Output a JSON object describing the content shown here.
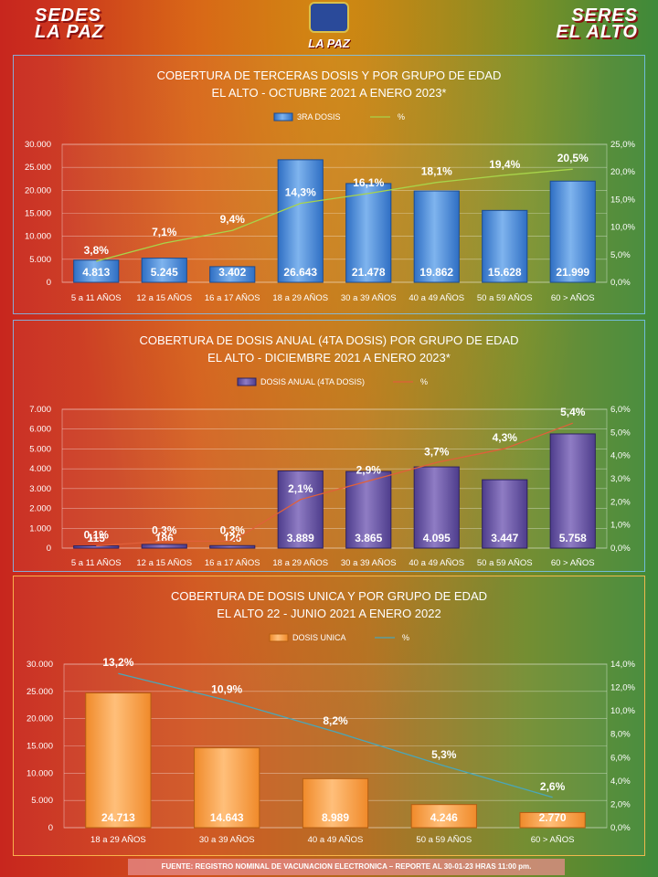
{
  "header": {
    "logo_left_line1": "SEDES",
    "logo_left_line2": "LA PAZ",
    "logo_center_text": "LA PAZ",
    "logo_right_line1": "SERES",
    "logo_right_line2": "EL ALTO"
  },
  "footer": "FUENTE: REGISTRO NOMINAL DE VACUNACION ELECTRONICA – REPORTE AL 30-01-23 HRAS 11:00 pm.",
  "chart_data": [
    {
      "type": "bar",
      "title_lines": [
        "COBERTURA DE TERCERAS DOSIS Y POR GRUPO DE EDAD",
        "EL ALTO  - OCTUBRE 2021 A ENERO 2023*"
      ],
      "categories": [
        "5 a 11 AÑOS",
        "12 a 15 AÑOS",
        "16 a 17 AÑOS",
        "18 a 29 AÑOS",
        "30 a 39 AÑOS",
        "40 a 49 AÑOS",
        "50 a 59 AÑOS",
        "60 > AÑOS"
      ],
      "series": [
        {
          "name": "3RA DOSIS",
          "kind": "bar",
          "values": [
            4813,
            5245,
            3402,
            26643,
            21478,
            19862,
            15628,
            21999
          ],
          "labels": [
            "4.813",
            "5.245",
            "3.402",
            "26.643",
            "21.478",
            "19.862",
            "15.628",
            "21.999"
          ]
        },
        {
          "name": "%",
          "kind": "line",
          "values": [
            3.8,
            7.1,
            9.4,
            14.3,
            16.1,
            18.1,
            19.4,
            20.5
          ],
          "labels": [
            "3,8%",
            "7,1%",
            "9,4%",
            "14,3%",
            "16,1%",
            "18,1%",
            "19,4%",
            "20,5%"
          ]
        }
      ],
      "ylim": [
        0,
        30000
      ],
      "yticks": [
        "0",
        "5.000",
        "10.000",
        "15.000",
        "20.000",
        "25.000",
        "30.000"
      ],
      "y2lim": [
        0,
        25
      ],
      "y2ticks": [
        "0,0%",
        "5,0%",
        "10,0%",
        "15,0%",
        "20,0%",
        "25,0%"
      ],
      "colors": {
        "bar_top": "#7fb4ee",
        "bar_bottom": "#2f6fc4",
        "bar_edge": "#1c4c92",
        "line": "#a8d44a"
      },
      "legend": "top-center",
      "grid": true
    },
    {
      "type": "bar",
      "title_lines": [
        "COBERTURA DE DOSIS ANUAL (4TA DOSIS) POR GRUPO DE EDAD",
        "EL ALTO - DICIEMBRE 2021 A ENERO 2023*"
      ],
      "categories": [
        "5 a 11 AÑOS",
        "12 a 15 AÑOS",
        "16 a 17 AÑOS",
        "18 a 29 AÑOS",
        "30 a 39 AÑOS",
        "40 a 49 AÑOS",
        "50 a 59 AÑOS",
        "60 > AÑOS"
      ],
      "series": [
        {
          "name": "DOSIS ANUAL (4TA DOSIS)",
          "kind": "bar",
          "values": [
            115,
            186,
            126,
            3889,
            3865,
            4095,
            3447,
            5758
          ],
          "labels": [
            "115",
            "186",
            "126",
            "3.889",
            "3.865",
            "4.095",
            "3.447",
            "5.758"
          ]
        },
        {
          "name": "%",
          "kind": "line",
          "values": [
            0.1,
            0.3,
            0.3,
            2.1,
            2.9,
            3.7,
            4.3,
            5.4
          ],
          "labels": [
            "0,1%",
            "0,3%",
            "0,3%",
            "2,1%",
            "2,9%",
            "3,7%",
            "4,3%",
            "5,4%"
          ]
        }
      ],
      "ylim": [
        0,
        7000
      ],
      "yticks": [
        "0",
        "1.000",
        "2.000",
        "3.000",
        "4.000",
        "5.000",
        "6.000",
        "7.000"
      ],
      "y2lim": [
        0,
        6
      ],
      "y2ticks": [
        "0,0%",
        "1,0%",
        "2,0%",
        "3,0%",
        "4,0%",
        "5,0%",
        "6,0%"
      ],
      "colors": {
        "bar_top": "#8f7cc4",
        "bar_bottom": "#4e3d8c",
        "bar_edge": "#2e2260",
        "line": "#e0603a"
      },
      "legend": "top-center",
      "grid": true
    },
    {
      "type": "bar",
      "title_lines": [
        "COBERTURA DE DOSIS UNICA Y POR GRUPO DE EDAD",
        "EL ALTO 22 - JUNIO 2021 A ENERO 2022"
      ],
      "categories": [
        "18 a 29 AÑOS",
        "30 a 39 AÑOS",
        "40 a 49 AÑOS",
        "50 a 59 AÑOS",
        "60 > AÑOS"
      ],
      "series": [
        {
          "name": "DOSIS UNICA",
          "kind": "bar",
          "values": [
            24713,
            14643,
            8989,
            4246,
            2770
          ],
          "labels": [
            "24.713",
            "14.643",
            "8.989",
            "4.246",
            "2.770"
          ]
        },
        {
          "name": "%",
          "kind": "line",
          "values": [
            13.2,
            10.9,
            8.2,
            5.3,
            2.6
          ],
          "labels": [
            "13,2%",
            "10,9%",
            "8,2%",
            "5,3%",
            "2,6%"
          ]
        }
      ],
      "ylim": [
        0,
        30000
      ],
      "yticks": [
        "0",
        "5.000",
        "10.000",
        "15.000",
        "20.000",
        "25.000",
        "30.000"
      ],
      "y2lim": [
        0,
        14
      ],
      "y2ticks": [
        "0,0%",
        "2,0%",
        "4,0%",
        "6,0%",
        "8,0%",
        "10,0%",
        "12,0%",
        "14,0%"
      ],
      "colors": {
        "bar_top": "#ffbf7a",
        "bar_bottom": "#f08a2a",
        "bar_edge": "#b55e12",
        "line": "#4aa6b8"
      },
      "legend": "top-center",
      "grid": true
    }
  ]
}
